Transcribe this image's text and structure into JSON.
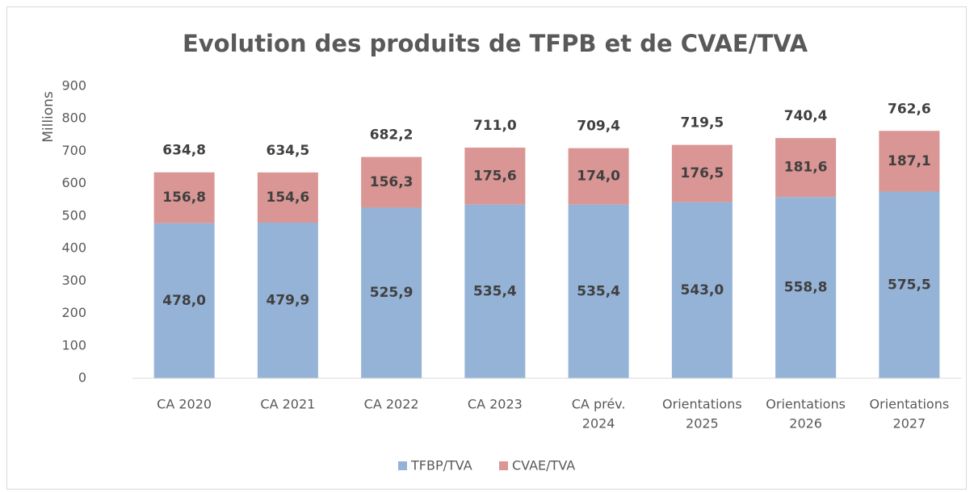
{
  "chart_data": {
    "type": "stacked_bar",
    "title": "Evolution des produits de TFPB  et de CVAE/TVA",
    "y_label": "Millions",
    "categories": [
      [
        "CA 2020"
      ],
      [
        "CA 2021"
      ],
      [
        "CA 2022"
      ],
      [
        "CA 2023"
      ],
      [
        "CA prév.",
        "2024"
      ],
      [
        "Orientations",
        "2025"
      ],
      [
        "Orientations",
        "2026"
      ],
      [
        "Orientations",
        "2027"
      ]
    ],
    "series": [
      {
        "name": "TFBP/TVA",
        "color": "#95b3d7",
        "values": [
          478.0,
          479.9,
          525.9,
          535.4,
          535.4,
          543.0,
          558.8,
          575.5
        ],
        "value_labels": [
          "478,0",
          "479,9",
          "525,9",
          "535,4",
          "535,4",
          "543,0",
          "558,8",
          "575,5"
        ]
      },
      {
        "name": "CVAE/TVA",
        "color": "#d99694",
        "values": [
          156.8,
          154.6,
          156.3,
          175.6,
          174.0,
          176.5,
          181.6,
          187.1
        ],
        "value_labels": [
          "156,8",
          "154,6",
          "156,3",
          "175,6",
          "174,0",
          "176,5",
          "181,6",
          "187,1"
        ]
      }
    ],
    "totals": [
      634.8,
      634.5,
      682.2,
      711.0,
      709.4,
      719.5,
      740.4,
      762.6
    ],
    "total_labels": [
      "634,8",
      "634,5",
      "682,2",
      "711,0",
      "709,4",
      "719,5",
      "740,4",
      "762,6"
    ],
    "ylim": [
      0,
      900
    ],
    "yticks": [
      0,
      100,
      200,
      300,
      400,
      500,
      600,
      700,
      800,
      900
    ],
    "legend": "bottom"
  }
}
